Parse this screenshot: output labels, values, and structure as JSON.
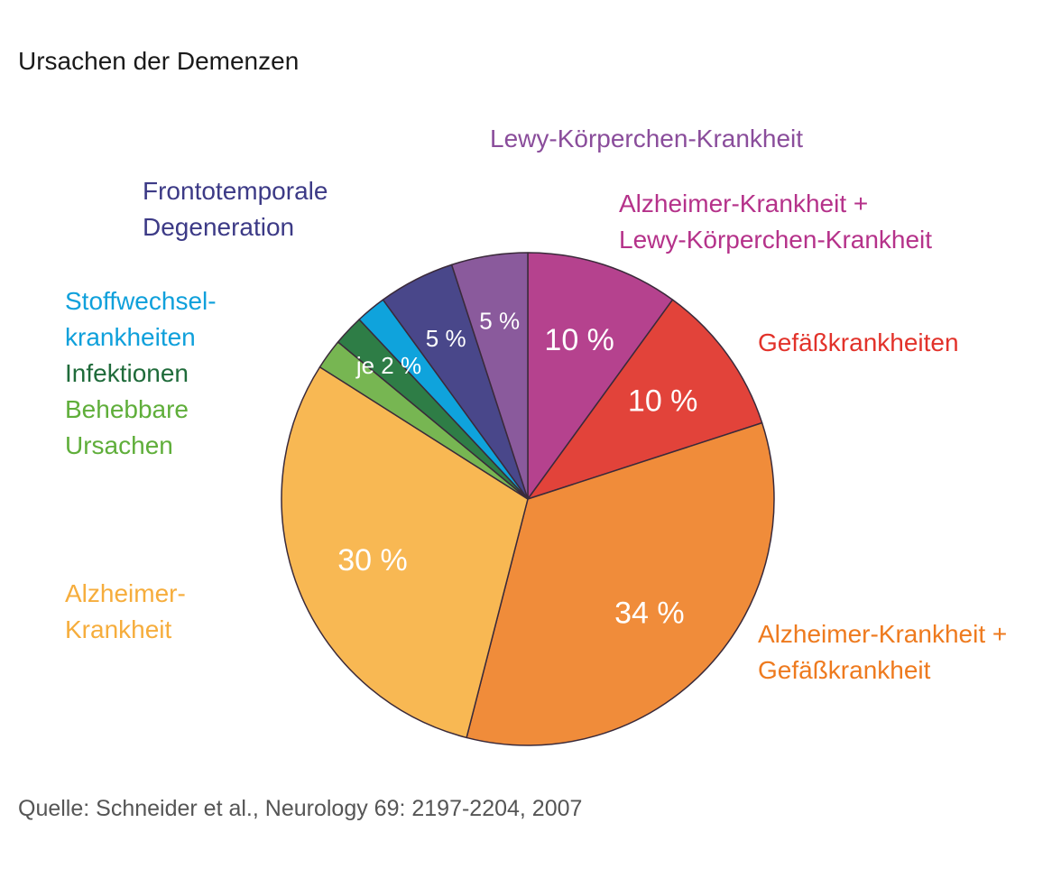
{
  "title": "Ursachen der Demenzen",
  "source": "Quelle: Schneider et al., Neurology 69: 2197-2204, 2007",
  "chart_data": {
    "type": "pie",
    "title": "Ursachen der Demenzen",
    "start_angle_deg": 0,
    "direction": "clockwise",
    "slices": [
      {
        "id": "alz-lewy",
        "legend": [
          "Alzheimer-Krankheit +",
          "Lewy-Körperchen-Krankheit"
        ],
        "value": 10,
        "label": "10 %",
        "color": "#b5428e",
        "legend_color": "#b5328a"
      },
      {
        "id": "gefaess",
        "legend": [
          "Gefäßkrankheiten"
        ],
        "value": 10,
        "label": "10 %",
        "color": "#e2433a",
        "legend_color": "#e2322a"
      },
      {
        "id": "alz-gefaess",
        "legend": [
          "Alzheimer-Krankheit +",
          "Gefäßkrankheit"
        ],
        "value": 34,
        "label": "34 %",
        "color": "#f08c3a",
        "legend_color": "#ee7a1e"
      },
      {
        "id": "alzheimer",
        "legend": [
          "Alzheimer-",
          "Krankheit"
        ],
        "value": 30,
        "label": "30 %",
        "color": "#f8b853",
        "legend_color": "#f6ad3c"
      },
      {
        "id": "behebbar",
        "legend": [
          "Behebbare",
          "Ursachen"
        ],
        "value": 2,
        "label": "",
        "color": "#77b652",
        "legend_color": "#5fae3a"
      },
      {
        "id": "infektionen",
        "legend": [
          "Infektionen"
        ],
        "value": 2,
        "label": "",
        "color": "#2e7d46",
        "legend_color": "#1f6b3a"
      },
      {
        "id": "stoffwechsel",
        "legend": [
          "Stoffwechsel-",
          "krankheiten"
        ],
        "value": 2,
        "label": "",
        "color": "#0fa3dc",
        "legend_color": "#0fa0db"
      },
      {
        "id": "frontotemporal",
        "legend": [
          "Frontotemporale",
          "Degeneration"
        ],
        "value": 5,
        "label": "5 %",
        "color": "#49478a",
        "legend_color": "#3c3a86"
      },
      {
        "id": "lewy",
        "legend": [
          "Lewy-Körperchen-Krankheit"
        ],
        "value": 5,
        "label": "5 %",
        "color": "#8a5a9c",
        "legend_color": "#8a4d9b"
      }
    ],
    "group_labels": [
      {
        "text": "je 2 %",
        "slices": [
          "behebbar",
          "infektionen",
          "stoffwechsel"
        ]
      }
    ]
  }
}
